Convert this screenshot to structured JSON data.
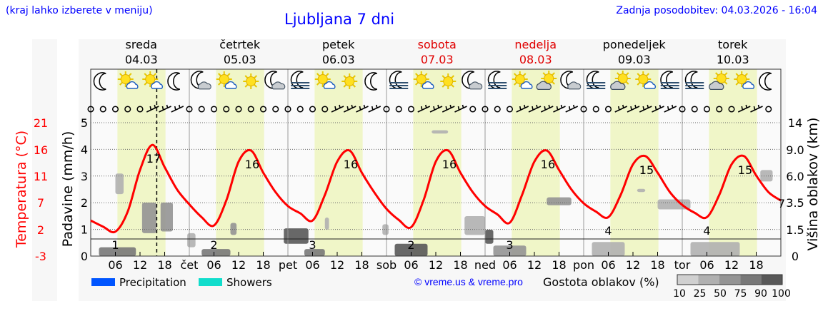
{
  "header": {
    "left_note": "(kraj lahko izberete v meniju)",
    "title": "Ljubljana 7 dni",
    "updated": "Zadnja posodobitev: 04.03.2026 - 16:04"
  },
  "days": [
    {
      "name": "sreda",
      "date": "04.03",
      "abbr": "",
      "weekend": false
    },
    {
      "name": "četrtek",
      "date": "05.03",
      "abbr": "čet",
      "weekend": false
    },
    {
      "name": "petek",
      "date": "06.03",
      "abbr": "pet",
      "weekend": false
    },
    {
      "name": "sobota",
      "date": "07.03",
      "abbr": "sob",
      "weekend": true
    },
    {
      "name": "nedelja",
      "date": "08.03",
      "abbr": "ned",
      "weekend": true
    },
    {
      "name": "ponedeljek",
      "date": "09.03",
      "abbr": "pon",
      "weekend": false
    },
    {
      "name": "torek",
      "date": "10.03",
      "abbr": "tor",
      "weekend": false
    }
  ],
  "hour_ticks": [
    "06",
    "12",
    "18"
  ],
  "weather_icons": [
    [
      "moon",
      "sun-cloud",
      "sun-cloud",
      "moon"
    ],
    [
      "moon-cloud",
      "sun-cloud",
      "sun",
      "moon-cloud"
    ],
    [
      "moon-fog",
      "sun-cloud",
      "sun",
      "moon"
    ],
    [
      "moon-fog",
      "sun-cloud",
      "sun",
      "moon-cloud"
    ],
    [
      "moon-fog",
      "sun-cloud",
      "cloud-sun",
      "moon-cloud"
    ],
    [
      "moon-fog",
      "cloud-sun",
      "sun-cloud",
      "moon-fog"
    ],
    [
      "moon-fog",
      "cloud-sun",
      "sun-cloud",
      "moon"
    ]
  ],
  "wind": [
    [
      "calm",
      "calm",
      "calm",
      "calm",
      "calm",
      "barb",
      "barb",
      "barb"
    ],
    [
      "calm",
      "calm",
      "calm",
      "calm",
      "calm",
      "calm",
      "calm",
      "calm"
    ],
    [
      "calm",
      "calm",
      "calm",
      "calm",
      "barb",
      "barb",
      "barb",
      "barb"
    ],
    [
      "calm",
      "calm",
      "calm",
      "barb",
      "barb",
      "barb",
      "barb",
      "calm"
    ],
    [
      "calm",
      "calm",
      "calm",
      "barb",
      "barb",
      "barb",
      "barb",
      "barb"
    ],
    [
      "calm",
      "calm",
      "calm",
      "barb",
      "barb",
      "barb",
      "barb",
      "barb"
    ],
    [
      "calm",
      "calm",
      "calm",
      "calm",
      "calm",
      "barb",
      "barb",
      "calm"
    ]
  ],
  "legend": {
    "precipitation": "Precipitation",
    "showers": "Showers",
    "precipitation_color": "#0055ff",
    "showers_color": "#11ddcc",
    "credit": "© vreme.us & vreme.pro",
    "cloud_title": "Gostota oblakov (%)",
    "cloud_levels": [
      "10",
      "25",
      "50",
      "75",
      "90",
      "100"
    ],
    "cloud_colors": [
      "#d0d0d0",
      "#b0b0b0",
      "#949494",
      "#787878",
      "#585858"
    ]
  },
  "chart_data": {
    "type": "line",
    "current_time": "04.03.2026 16:04",
    "yaxis_left_temp": {
      "label": "Temperatura (°C)",
      "ticks": [
        "21",
        "16",
        "11",
        "7",
        "2",
        "-3"
      ],
      "color": "#ff0000"
    },
    "yaxis_left_precip": {
      "label": "Padavine (mm/h)",
      "ticks": [
        "0",
        "1",
        "2",
        "3",
        "4",
        "5"
      ],
      "range": [
        0,
        5.5
      ]
    },
    "yaxis_right": {
      "label": "Višina oblakov (km)",
      "ticks": [
        "0",
        "1.5",
        "3.5",
        "6.0",
        "9.0",
        "14"
      ]
    },
    "grid": true,
    "temperature": {
      "step_hours": 3,
      "values": [
        3.4,
        2.3,
        1.4,
        5,
        12.5,
        17,
        13,
        9,
        6.3,
        4,
        2.5,
        7,
        14,
        16,
        12,
        8.5,
        6,
        4.7,
        3.4,
        8,
        14,
        16,
        12,
        8.5,
        5.5,
        3.5,
        2.2,
        7,
        14,
        16,
        12,
        8.5,
        6,
        4.5,
        3,
        8,
        14,
        16,
        12.5,
        9,
        6.5,
        5,
        4,
        8,
        13.5,
        15,
        12,
        8.5,
        6.2,
        4.8,
        4,
        8,
        13.5,
        15,
        11.5,
        8.5,
        7
      ]
    },
    "daily_min_labels": [
      "1",
      "2",
      "3",
      "2",
      "3",
      "4",
      "4"
    ],
    "daily_max_labels": [
      "17",
      "16",
      "16",
      "16",
      "16",
      "15",
      "15"
    ],
    "end_label": "7",
    "precipitation": [],
    "clouds": [
      {
        "from_h": 2,
        "to_h": 11,
        "base_km": 0,
        "top_km": 0.5,
        "density": 75
      },
      {
        "from_h": 6,
        "to_h": 8,
        "base_km": 4.3,
        "top_km": 6.3,
        "density": 25
      },
      {
        "from_h": 12.5,
        "to_h": 16,
        "base_km": 1.3,
        "top_km": 3.5,
        "density": 50
      },
      {
        "from_h": 17,
        "to_h": 20,
        "base_km": 1.4,
        "top_km": 3.5,
        "density": 50
      },
      {
        "from_h": 23.5,
        "to_h": 25.5,
        "base_km": 0.5,
        "top_km": 1.3,
        "density": 25
      },
      {
        "from_h": 27,
        "to_h": 34,
        "base_km": 0,
        "top_km": 0.4,
        "density": 75
      },
      {
        "from_h": 34,
        "to_h": 35.5,
        "base_km": 1.2,
        "top_km": 2.0,
        "density": 50
      },
      {
        "from_h": 47,
        "to_h": 53,
        "base_km": 0.7,
        "top_km": 1.6,
        "density": 90
      },
      {
        "from_h": 52,
        "to_h": 57,
        "base_km": 0,
        "top_km": 0.4,
        "density": 75
      },
      {
        "from_h": 57,
        "to_h": 58,
        "base_km": 1.5,
        "top_km": 2.4,
        "density": 25
      },
      {
        "from_h": 71,
        "to_h": 72.5,
        "base_km": 1.2,
        "top_km": 1.9,
        "density": 25
      },
      {
        "from_h": 74,
        "to_h": 82,
        "base_km": 0,
        "top_km": 0.7,
        "density": 90
      },
      {
        "from_h": 83,
        "to_h": 87,
        "base_km": 12,
        "top_km": 12.6,
        "density": 25
      },
      {
        "from_h": 91,
        "to_h": 96,
        "base_km": 1.2,
        "top_km": 2.5,
        "density": 25
      },
      {
        "from_h": 96,
        "to_h": 98,
        "base_km": 0.7,
        "top_km": 1.5,
        "density": 90
      },
      {
        "from_h": 98,
        "to_h": 106,
        "base_km": 0,
        "top_km": 0.6,
        "density": 50
      },
      {
        "from_h": 111,
        "to_h": 117,
        "base_km": 3.3,
        "top_km": 4.0,
        "density": 50
      },
      {
        "from_h": 122,
        "to_h": 130,
        "base_km": 0,
        "top_km": 0.8,
        "density": 25
      },
      {
        "from_h": 133,
        "to_h": 135,
        "base_km": 4.5,
        "top_km": 4.8,
        "density": 25
      },
      {
        "from_h": 138,
        "to_h": 146,
        "base_km": 3.0,
        "top_km": 3.8,
        "density": 25
      },
      {
        "from_h": 146,
        "to_h": 158,
        "base_km": 0,
        "top_km": 0.8,
        "density": 25
      },
      {
        "from_h": 163,
        "to_h": 166,
        "base_km": 5.5,
        "top_km": 6.7,
        "density": 25
      }
    ]
  }
}
